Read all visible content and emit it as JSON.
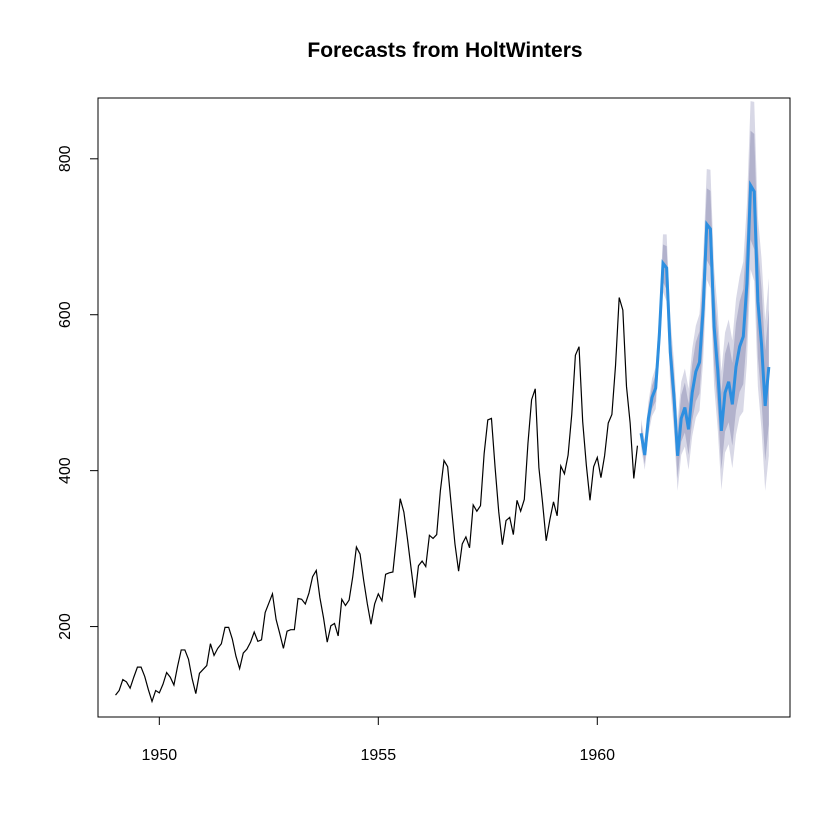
{
  "chart_data": {
    "type": "line",
    "title": "Forecasts from HoltWinters",
    "xlabel": "",
    "ylabel": "",
    "xlim": [
      1948.6,
      1964.4
    ],
    "ylim": [
      84,
      878
    ],
    "x_ticks": [
      1950,
      1955,
      1960
    ],
    "x_tick_labels": [
      "1950",
      "1955",
      "1960"
    ],
    "y_ticks": [
      200,
      400,
      600,
      800
    ],
    "y_tick_labels": [
      "200",
      "400",
      "600",
      "800"
    ],
    "grid": false,
    "legend": "none",
    "colors": {
      "history": "#000000",
      "forecast": "#2d8fe0",
      "band_outer": "#d8d8e6",
      "band_inner": "#b2b2cc"
    },
    "history": {
      "start": 1949.0,
      "frequency": 12,
      "values": [
        112,
        118,
        132,
        129,
        121,
        135,
        148,
        148,
        136,
        119,
        104,
        118,
        115,
        126,
        141,
        135,
        125,
        149,
        170,
        170,
        158,
        133,
        114,
        140,
        145,
        150,
        178,
        163,
        172,
        178,
        199,
        199,
        184,
        162,
        146,
        166,
        171,
        180,
        193,
        181,
        183,
        218,
        230,
        242,
        209,
        191,
        172,
        194,
        196,
        196,
        236,
        235,
        229,
        243,
        264,
        272,
        237,
        211,
        180,
        201,
        204,
        188,
        235,
        227,
        234,
        264,
        302,
        293,
        259,
        229,
        203,
        229,
        242,
        233,
        267,
        269,
        270,
        315,
        364,
        347,
        312,
        274,
        237,
        278,
        284,
        277,
        317,
        313,
        318,
        374,
        413,
        405,
        355,
        306,
        271,
        306,
        315,
        301,
        356,
        348,
        355,
        422,
        465,
        467,
        404,
        347,
        305,
        336,
        340,
        318,
        362,
        348,
        363,
        435,
        491,
        505,
        404,
        359,
        310,
        337,
        360,
        342,
        406,
        396,
        420,
        472,
        548,
        559,
        463,
        407,
        362,
        405,
        417,
        391,
        419,
        461,
        472,
        535,
        622,
        606,
        508,
        461,
        390,
        432
      ]
    },
    "forecast": {
      "start": 1961.0,
      "frequency": 12,
      "mean": [
        448,
        420,
        467,
        494,
        506,
        574,
        666,
        660,
        552,
        496,
        419,
        467,
        481,
        453,
        500,
        527,
        539,
        607,
        716,
        710,
        585,
        529,
        451,
        500,
        514,
        485,
        533,
        559,
        572,
        640,
        766,
        758,
        617,
        562,
        483,
        533
      ],
      "lo80": [
        437,
        408,
        454,
        479,
        489,
        555,
        642,
        632,
        523,
        467,
        390,
        437,
        449,
        420,
        464,
        489,
        499,
        564,
        670,
        661,
        536,
        480,
        402,
        450,
        462,
        432,
        477,
        501,
        511,
        574,
        696,
        684,
        546,
        491,
        412,
        459
      ],
      "hi80": [
        459,
        432,
        480,
        509,
        523,
        593,
        690,
        688,
        581,
        525,
        448,
        497,
        513,
        486,
        536,
        565,
        579,
        650,
        762,
        759,
        634,
        578,
        500,
        550,
        566,
        538,
        589,
        617,
        633,
        706,
        836,
        832,
        688,
        633,
        554,
        607
      ],
      "lo95": [
        430,
        401,
        446,
        470,
        479,
        545,
        629,
        617,
        507,
        451,
        374,
        420,
        431,
        401,
        444,
        468,
        477,
        541,
        645,
        634,
        509,
        453,
        375,
        423,
        434,
        403,
        446,
        469,
        476,
        538,
        658,
        643,
        508,
        452,
        374,
        419
      ],
      "hi95": [
        466,
        439,
        488,
        518,
        533,
        603,
        703,
        703,
        597,
        541,
        464,
        514,
        531,
        505,
        556,
        586,
        601,
        673,
        787,
        786,
        661,
        605,
        527,
        577,
        594,
        567,
        620,
        649,
        668,
        742,
        874,
        873,
        726,
        672,
        592,
        647
      ]
    }
  }
}
